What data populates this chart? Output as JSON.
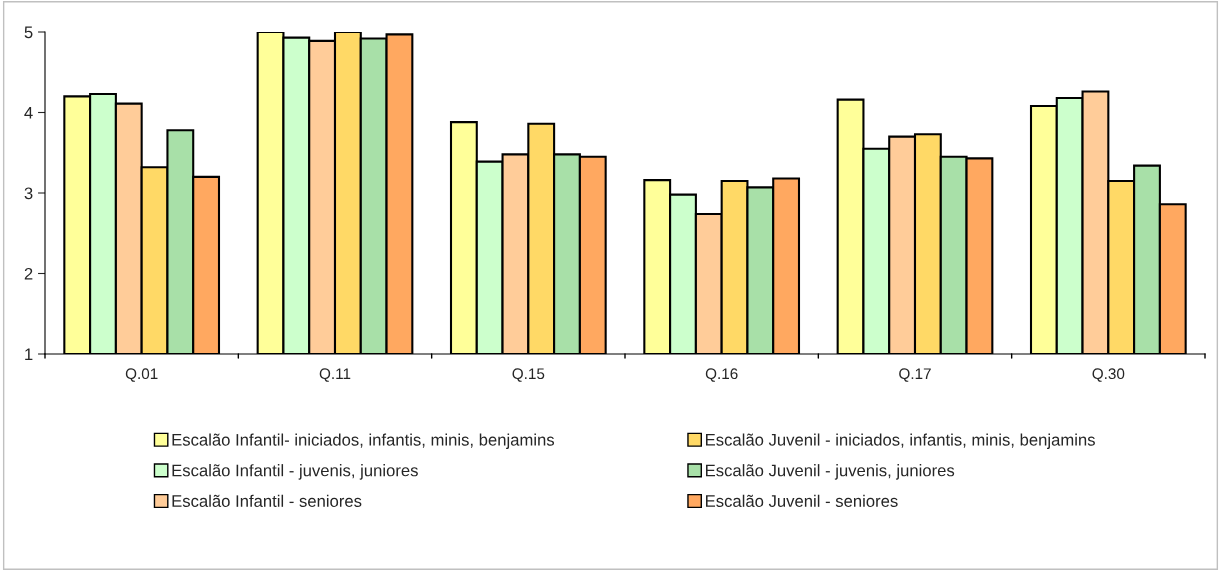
{
  "chart_data": {
    "type": "bar",
    "categories": [
      "Q.01",
      "Q.11",
      "Q.15",
      "Q.16",
      "Q.17",
      "Q.30"
    ],
    "series": [
      {
        "name": "Escalão Infantil- iniciados, infantis, minis, benjamins",
        "color": "#ffff99",
        "values": [
          4.2,
          5.0,
          3.88,
          3.16,
          4.16,
          4.08
        ]
      },
      {
        "name": "Escalão Infantil - juvenis, juniores",
        "color": "#ccffcc",
        "values": [
          4.23,
          4.93,
          3.39,
          2.98,
          3.55,
          4.18
        ]
      },
      {
        "name": "Escalão Infantil - seniores",
        "color": "#ffcc99",
        "values": [
          4.11,
          4.89,
          3.48,
          2.74,
          3.7,
          4.26
        ]
      },
      {
        "name": "Escalão Juvenil - iniciados, infantis, minis, benjamins",
        "color": "#ffd966",
        "values": [
          3.32,
          5.0,
          3.86,
          3.15,
          3.73,
          3.15
        ]
      },
      {
        "name": "Escalão Juvenil - juvenis, juniores",
        "color": "#a8e0a8",
        "values": [
          3.78,
          4.92,
          3.48,
          3.07,
          3.45,
          3.34
        ]
      },
      {
        "name": "Escalão Juvenil - seniores",
        "color": "#ffa860",
        "values": [
          3.2,
          4.97,
          3.45,
          3.18,
          3.43,
          2.86
        ]
      }
    ],
    "ylim": [
      1,
      5
    ],
    "yticks": [
      1,
      2,
      3,
      4,
      5
    ],
    "grid": false,
    "legend": "bottom"
  }
}
